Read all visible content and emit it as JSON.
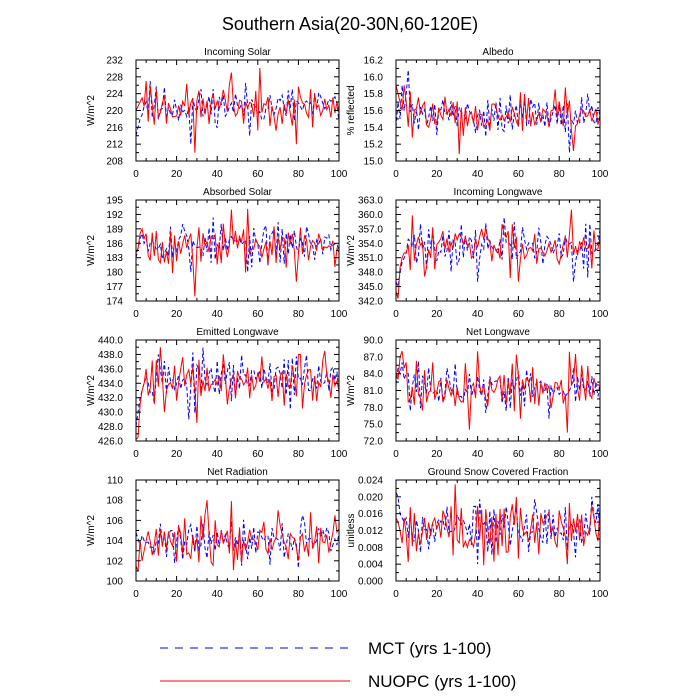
{
  "title": "Southern Asia(20-30N,60-120E)",
  "legend": {
    "mct_label": "MCT (yrs 1-100)",
    "nuopc_label": "NUOPC (yrs 1-100)"
  },
  "colors": {
    "mct": "#0000ff",
    "nuopc": "#ff0000",
    "axis": "#000000"
  },
  "chart_data": [
    {
      "type": "line",
      "title": "Incoming Solar",
      "ylabel": "W/m^2",
      "xlim": [
        0,
        100
      ],
      "ylim": [
        208,
        232
      ],
      "xticks": [
        "0",
        "20",
        "40",
        "60",
        "80",
        "100"
      ],
      "yticks": [
        "208",
        "212",
        "216",
        "220",
        "224",
        "228",
        "232"
      ],
      "series": [
        {
          "name": "MCT (yrs 1-100)",
          "style": "dashed",
          "base": 221,
          "amp": 2.8,
          "seed": 11,
          "early": [
            214,
            216,
            218,
            219,
            221,
            222
          ],
          "spikes": [
            [
              7,
              227
            ],
            [
              27,
              212
            ],
            [
              56,
              214
            ]
          ]
        },
        {
          "name": "NUOPC (yrs 1-100)",
          "style": "solid",
          "base": 221,
          "amp": 3.0,
          "seed": 23,
          "early": [
            220,
            221,
            222,
            223,
            221,
            222
          ],
          "spikes": [
            [
              5,
              227
            ],
            [
              29,
              210
            ],
            [
              47,
              229
            ],
            [
              79,
              212
            ]
          ]
        }
      ]
    },
    {
      "type": "line",
      "title": "Albedo",
      "ylabel": "% reflected",
      "xlim": [
        0,
        100
      ],
      "ylim": [
        15.0,
        16.2
      ],
      "xticks": [
        "0",
        "20",
        "40",
        "60",
        "80",
        "100"
      ],
      "yticks": [
        "15.0",
        "15.2",
        "15.4",
        "15.6",
        "15.8",
        "16.0",
        "16.2"
      ],
      "series": [
        {
          "name": "MCT (yrs 1-100)",
          "style": "dashed",
          "base": 15.55,
          "amp": 0.12,
          "seed": 31,
          "early": [
            15.4,
            15.7,
            15.5,
            15.9,
            15.6,
            15.8
          ],
          "spikes": [
            [
              6,
              16.08
            ],
            [
              85,
              15.1
            ],
            [
              94,
              15.8
            ]
          ]
        },
        {
          "name": "NUOPC (yrs 1-100)",
          "style": "solid",
          "base": 15.55,
          "amp": 0.13,
          "seed": 47,
          "early": [
            15.9,
            15.8,
            15.7,
            15.6,
            15.9,
            15.7
          ],
          "spikes": [
            [
              31,
              15.08
            ],
            [
              78,
              15.85
            ],
            [
              87,
              15.12
            ]
          ]
        }
      ]
    },
    {
      "type": "line",
      "title": "Absorbed Solar",
      "ylabel": "W/m^2",
      "xlim": [
        0,
        100
      ],
      "ylim": [
        174,
        195
      ],
      "xticks": [
        "0",
        "20",
        "40",
        "60",
        "80",
        "100"
      ],
      "yticks": [
        "174",
        "177",
        "180",
        "183",
        "186",
        "189",
        "192",
        "195"
      ],
      "series": [
        {
          "name": "MCT (yrs 1-100)",
          "style": "dashed",
          "base": 186,
          "amp": 2.2,
          "seed": 53,
          "early": [
            183,
            185,
            187,
            188,
            186,
            187
          ],
          "spikes": [
            [
              23,
              190
            ],
            [
              27,
              180
            ],
            [
              55,
              180
            ]
          ]
        },
        {
          "name": "NUOPC (yrs 1-100)",
          "style": "solid",
          "base": 185.5,
          "amp": 2.5,
          "seed": 67,
          "early": [
            184,
            185,
            188,
            189,
            187,
            188
          ],
          "spikes": [
            [
              29,
              175
            ],
            [
              47,
              193
            ],
            [
              79,
              178
            ]
          ]
        }
      ]
    },
    {
      "type": "line",
      "title": "Incoming Longwave",
      "ylabel": "W/m^2",
      "xlim": [
        0,
        100
      ],
      "ylim": [
        342.0,
        363.0
      ],
      "xticks": [
        "0",
        "20",
        "40",
        "60",
        "80",
        "100"
      ],
      "yticks": [
        "342.0",
        "345.0",
        "348.0",
        "351.0",
        "354.0",
        "357.0",
        "360.0",
        "363.0"
      ],
      "series": [
        {
          "name": "MCT (yrs 1-100)",
          "style": "dashed",
          "base": 353.5,
          "amp": 2.6,
          "seed": 71,
          "early": [
            346,
            345,
            348,
            350,
            351,
            352
          ],
          "spikes": [
            [
              12,
              358
            ],
            [
              40,
              346
            ],
            [
              87,
              346
            ]
          ]
        },
        {
          "name": "NUOPC (yrs 1-100)",
          "style": "solid",
          "base": 353.5,
          "amp": 2.9,
          "seed": 83,
          "early": [
            344,
            342.5,
            349,
            351,
            352,
            352
          ],
          "spikes": [
            [
              86,
              361
            ],
            [
              42,
              357
            ],
            [
              60,
              346
            ]
          ]
        }
      ]
    },
    {
      "type": "line",
      "title": "Emitted Longwave",
      "ylabel": "W/m^2",
      "xlim": [
        0,
        100
      ],
      "ylim": [
        426.0,
        440.0
      ],
      "xticks": [
        "0",
        "20",
        "40",
        "60",
        "80",
        "100"
      ],
      "yticks": [
        "426.0",
        "428.0",
        "430.0",
        "432.0",
        "434.0",
        "436.0",
        "438.0",
        "440.0"
      ],
      "series": [
        {
          "name": "MCT (yrs 1-100)",
          "style": "dashed",
          "base": 434.6,
          "amp": 1.6,
          "seed": 97,
          "early": [
            428,
            430,
            432,
            433,
            434,
            435
          ],
          "spikes": [
            [
              11,
              438
            ],
            [
              26,
              429
            ]
          ]
        },
        {
          "name": "NUOPC (yrs 1-100)",
          "style": "solid",
          "base": 434.3,
          "amp": 1.9,
          "seed": 101,
          "early": [
            426.2,
            426.5,
            431,
            433,
            434,
            436
          ],
          "spikes": [
            [
              12,
              439
            ],
            [
              30,
              428.5
            ],
            [
              93,
              438.5
            ],
            [
              80,
              438
            ]
          ]
        }
      ]
    },
    {
      "type": "line",
      "title": "Net Longwave",
      "ylabel": "W/m^2",
      "xlim": [
        0,
        100
      ],
      "ylim": [
        72.0,
        90.0
      ],
      "xticks": [
        "0",
        "20",
        "40",
        "60",
        "80",
        "100"
      ],
      "yticks": [
        "72.0",
        "75.0",
        "78.0",
        "81.0",
        "84.0",
        "87.0",
        "90.0"
      ],
      "series": [
        {
          "name": "MCT (yrs 1-100)",
          "style": "dashed",
          "base": 81.5,
          "amp": 2.2,
          "seed": 113,
          "early": [
            82,
            85,
            84,
            86,
            83,
            84
          ],
          "spikes": [
            [
              44,
              77
            ],
            [
              75,
              76
            ]
          ]
        },
        {
          "name": "NUOPC (yrs 1-100)",
          "style": "solid",
          "base": 81.3,
          "amp": 2.6,
          "seed": 127,
          "early": [
            84,
            83,
            87,
            88,
            85,
            86
          ],
          "spikes": [
            [
              36,
              74
            ],
            [
              40,
              88
            ],
            [
              84,
              73.5
            ],
            [
              88,
              87.5
            ]
          ]
        }
      ]
    },
    {
      "type": "line",
      "title": "Net Radiation",
      "ylabel": "W/m^2",
      "xlim": [
        0,
        100
      ],
      "ylim": [
        100,
        110
      ],
      "xticks": [
        "0",
        "20",
        "40",
        "60",
        "80",
        "100"
      ],
      "yticks": [
        "100",
        "102",
        "104",
        "106",
        "108",
        "110"
      ],
      "series": [
        {
          "name": "MCT (yrs 1-100)",
          "style": "dashed",
          "base": 104.0,
          "amp": 1.1,
          "seed": 131,
          "early": [
            104.8,
            104.2,
            103.5,
            104.5,
            104.0,
            103.8
          ],
          "spikes": [
            [
              80,
              101.3
            ],
            [
              82,
              106.5
            ]
          ]
        },
        {
          "name": "NUOPC (yrs 1-100)",
          "style": "solid",
          "base": 104.0,
          "amp": 1.4,
          "seed": 149,
          "early": [
            101.5,
            101,
            104,
            102,
            103,
            104
          ],
          "spikes": [
            [
              35,
              108
            ],
            [
              70,
              107
            ],
            [
              86,
              106.8
            ],
            [
              98,
              106.5
            ]
          ]
        }
      ]
    },
    {
      "type": "line",
      "title": "Ground Snow Covered Fraction",
      "ylabel": "unitless",
      "xlim": [
        0,
        100
      ],
      "ylim": [
        0.0,
        0.024
      ],
      "xticks": [
        "0",
        "20",
        "40",
        "60",
        "80",
        "100"
      ],
      "yticks": [
        "0.000",
        "0.004",
        "0.008",
        "0.012",
        "0.016",
        "0.020",
        "0.024"
      ],
      "series": [
        {
          "name": "MCT (yrs 1-100)",
          "style": "dashed",
          "base": 0.0128,
          "amp": 0.0032,
          "seed": 157,
          "early": [
            0.021,
            0.02,
            0.016,
            0.015,
            0.014,
            0.015
          ],
          "spikes": [
            [
              96,
              0.02
            ],
            [
              40,
              0.004
            ]
          ]
        },
        {
          "name": "NUOPC (yrs 1-100)",
          "style": "solid",
          "base": 0.0125,
          "amp": 0.0036,
          "seed": 163,
          "early": [
            0.015,
            0.014,
            0.012,
            0.009,
            0.015,
            0.011
          ],
          "spikes": [
            [
              29,
              0.023
            ],
            [
              35,
              0.008
            ],
            [
              59,
              0.02
            ],
            [
              84,
              0.004
            ]
          ]
        }
      ]
    }
  ]
}
